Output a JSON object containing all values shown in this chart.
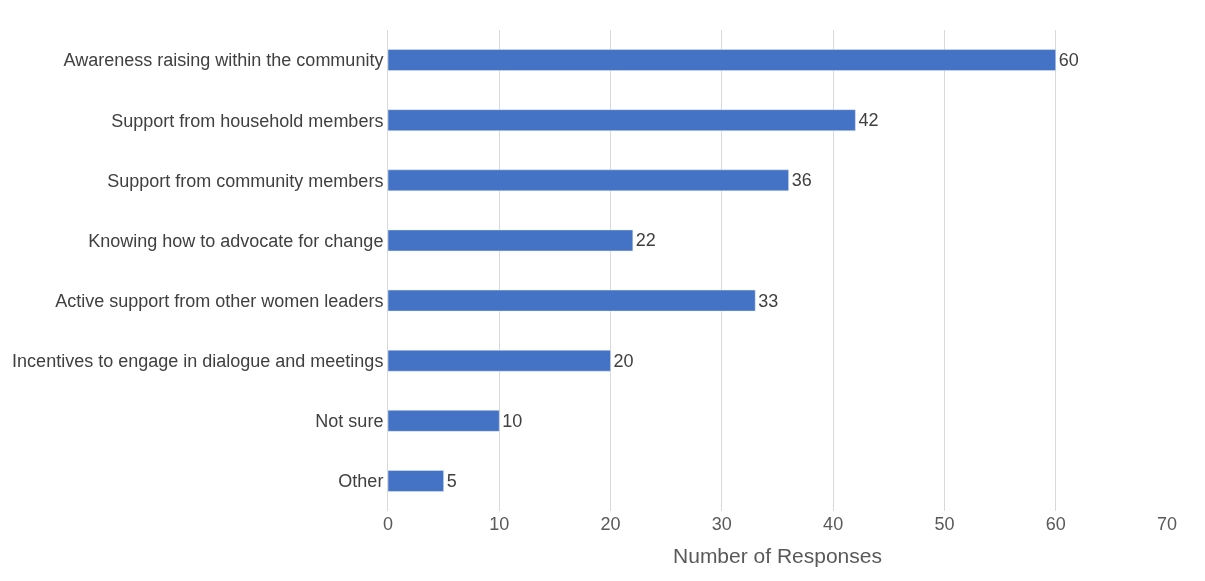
{
  "chart_data": {
    "type": "bar",
    "orientation": "horizontal",
    "xlabel": "Number of Responses",
    "categories": [
      "Awareness raising within the community",
      "Support from household members",
      "Support from community members",
      "Knowing how to advocate for change",
      "Active support from other women leaders",
      "Incentives to engage in dialogue and meetings",
      "Not sure",
      "Other"
    ],
    "values": [
      60,
      42,
      36,
      22,
      33,
      20,
      10,
      5
    ],
    "color": "#4472c4",
    "xlim": [
      0,
      70
    ],
    "xticks": [
      0,
      10,
      20,
      30,
      40,
      50,
      60,
      70
    ],
    "grid": "x",
    "data_labels": true,
    "legend": false
  }
}
